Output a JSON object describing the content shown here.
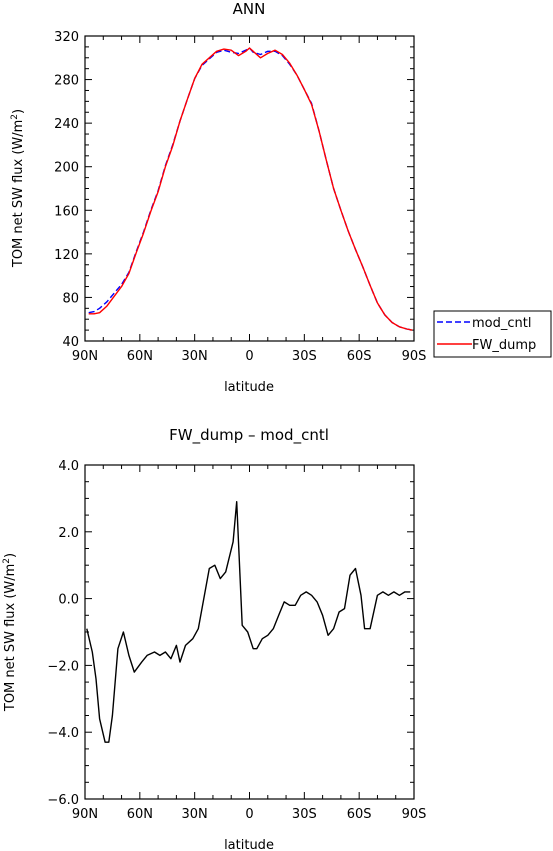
{
  "chart_data": [
    {
      "type": "line",
      "title": "ANN",
      "xlabel": "latitude",
      "ylabel": "TOM net SW flux (W/m",
      "ylabel_sup": "2",
      "ylabel_tail": ")",
      "xlim": [
        90,
        -90
      ],
      "ylim": [
        40,
        320
      ],
      "xticks": [
        90,
        60,
        30,
        0,
        -30,
        -60,
        -90
      ],
      "xtick_labels": [
        "90N",
        "60N",
        "30N",
        "0",
        "30S",
        "60S",
        "90S"
      ],
      "yticks": [
        40,
        80,
        120,
        160,
        200,
        240,
        280,
        320
      ],
      "ytick_labels": [
        "40",
        "80",
        "120",
        "160",
        "200",
        "240",
        "280",
        "320"
      ],
      "legend_position": "right",
      "series": [
        {
          "name": "mod_cntl",
          "color": "#0000ff",
          "dash": "dashed",
          "x": [
            88,
            85,
            82,
            78,
            74,
            70,
            66,
            62,
            58,
            54,
            50,
            46,
            42,
            38,
            34,
            30,
            26,
            22,
            18,
            14,
            10,
            6,
            2,
            0,
            -2,
            -6,
            -10,
            -14,
            -18,
            -22,
            -26,
            -30,
            -34,
            -38,
            -42,
            -46,
            -50,
            -54,
            -58,
            -62,
            -66,
            -70,
            -74,
            -78,
            -82,
            -86,
            -89
          ],
          "y": [
            66,
            67,
            70,
            76,
            84,
            92,
            103,
            122,
            140,
            160,
            178,
            201,
            220,
            242,
            262,
            281,
            293,
            299,
            305,
            307,
            305,
            304,
            307,
            309,
            305,
            303,
            306,
            306,
            302,
            294,
            284,
            271,
            258,
            233,
            206,
            180,
            160,
            141,
            124,
            108,
            91,
            75,
            64,
            57,
            53,
            51,
            50
          ]
        },
        {
          "name": "FW_dump",
          "color": "#ff0000",
          "dash": "solid",
          "x": [
            88,
            85,
            82,
            78,
            74,
            70,
            66,
            62,
            58,
            54,
            50,
            46,
            42,
            38,
            34,
            30,
            26,
            22,
            18,
            14,
            10,
            6,
            2,
            0,
            -2,
            -6,
            -10,
            -14,
            -18,
            -22,
            -26,
            -30,
            -34,
            -38,
            -42,
            -46,
            -50,
            -54,
            -58,
            -62,
            -66,
            -70,
            -74,
            -78,
            -82,
            -86,
            -89
          ],
          "y": [
            65,
            65,
            66,
            72,
            81,
            90,
            102,
            121,
            139,
            159,
            177,
            200,
            219,
            242,
            262,
            281,
            294,
            300,
            306,
            308,
            307,
            302,
            306,
            309,
            306,
            300,
            304,
            307,
            303,
            295,
            284,
            271,
            257,
            233,
            206,
            180,
            160,
            141,
            124,
            108,
            91,
            75,
            64,
            57,
            53,
            51,
            50
          ]
        }
      ]
    },
    {
      "type": "line",
      "title": "FW_dump – mod_cntl",
      "xlabel": "latitude",
      "ylabel": "TOM net SW flux (W/m",
      "ylabel_sup": "2",
      "ylabel_tail": ")",
      "xlim": [
        90,
        -90
      ],
      "ylim": [
        -6,
        4
      ],
      "xticks": [
        90,
        60,
        30,
        0,
        -30,
        -60,
        -90
      ],
      "xtick_labels": [
        "90N",
        "60N",
        "30N",
        "0",
        "30S",
        "60S",
        "90S"
      ],
      "yticks": [
        -6,
        -4,
        -2,
        0,
        2,
        4
      ],
      "ytick_labels": [
        "−6.0",
        "−4.0",
        "−2.0",
        "0.0",
        "2.0",
        "4.0"
      ],
      "series": [
        {
          "color": "#000000",
          "dash": "solid",
          "x": [
            89,
            86,
            84,
            82,
            79,
            77,
            75,
            72,
            69,
            66,
            63,
            59,
            56,
            52,
            49,
            46,
            43,
            40,
            38,
            35,
            31,
            28,
            25,
            22,
            19,
            16,
            13,
            9,
            7,
            4,
            1,
            -2,
            -4,
            -7,
            -10,
            -13,
            -16,
            -19,
            -22,
            -25,
            -28,
            -31,
            -34,
            -37,
            -40,
            -43,
            -46,
            -49,
            -52,
            -55,
            -58,
            -61,
            -63,
            -66,
            -70,
            -73,
            -76,
            -79,
            -82,
            -85,
            -88
          ],
          "y": [
            -0.9,
            -1.6,
            -2.4,
            -3.6,
            -4.3,
            -4.3,
            -3.5,
            -1.5,
            -1.0,
            -1.7,
            -2.2,
            -1.9,
            -1.7,
            -1.6,
            -1.7,
            -1.6,
            -1.8,
            -1.4,
            -1.9,
            -1.4,
            -1.2,
            -0.9,
            0.0,
            0.9,
            1.0,
            0.6,
            0.8,
            1.7,
            2.9,
            -0.8,
            -1.0,
            -1.5,
            -1.5,
            -1.2,
            -1.1,
            -0.9,
            -0.5,
            -0.1,
            -0.2,
            -0.2,
            0.1,
            0.2,
            0.1,
            -0.1,
            -0.5,
            -1.1,
            -0.9,
            -0.4,
            -0.3,
            0.7,
            0.9,
            0.1,
            -0.9,
            -0.9,
            0.1,
            0.2,
            0.1,
            0.2,
            0.1,
            0.2,
            0.2
          ]
        }
      ]
    }
  ]
}
